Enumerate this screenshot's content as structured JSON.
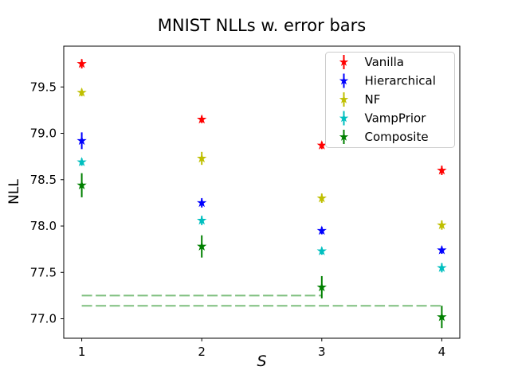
{
  "chart_data": {
    "type": "scatter",
    "subtype": "errorbar",
    "title": "MNIST NLLs w. error bars",
    "xlabel": "S",
    "ylabel": "NLL",
    "x": [
      1,
      2,
      3,
      4
    ],
    "xtick_labels": [
      "1",
      "2",
      "3",
      "4"
    ],
    "ytick_values": [
      77.0,
      77.5,
      78.0,
      78.5,
      79.0,
      79.5
    ],
    "ytick_labels": [
      "77.0",
      "77.5",
      "78.0",
      "78.5",
      "79.0",
      "79.5"
    ],
    "xlim": [
      0.85,
      4.15
    ],
    "ylim": [
      76.79,
      79.94
    ],
    "grid": false,
    "marker": "star",
    "legend_position": "upper right",
    "series": [
      {
        "name": "Vanilla",
        "color": "#ff0000",
        "values": [
          79.75,
          79.15,
          78.87,
          78.6
        ],
        "errors": [
          0.05,
          0.04,
          0.04,
          0.05
        ]
      },
      {
        "name": "Hierarchical",
        "color": "#0000ff",
        "values": [
          78.92,
          78.25,
          77.95,
          77.74
        ],
        "errors": [
          0.09,
          0.05,
          0.04,
          0.04
        ]
      },
      {
        "name": "NF",
        "color": "#bfbf00",
        "values": [
          79.44,
          78.73,
          78.3,
          78.01
        ],
        "errors": [
          0.04,
          0.07,
          0.05,
          0.05
        ]
      },
      {
        "name": "VampPrior",
        "color": "#00bfbf",
        "values": [
          78.69,
          78.06,
          77.73,
          77.55
        ],
        "errors": [
          0.04,
          0.05,
          0.04,
          0.05
        ]
      },
      {
        "name": "Composite",
        "color": "#008000",
        "values": [
          78.44,
          77.78,
          77.34,
          77.02
        ],
        "errors": [
          0.13,
          0.12,
          0.12,
          0.12
        ]
      }
    ],
    "reference_lines": [
      {
        "y": 77.25,
        "x_from": 1,
        "x_to": 3,
        "color": "#7fbf7f",
        "style": "dashed"
      },
      {
        "y": 77.14,
        "x_from": 1,
        "x_to": 4,
        "color": "#7fbf7f",
        "style": "dashed"
      }
    ]
  },
  "colors": {
    "background": "#ffffff",
    "axis": "#000000",
    "legend_border": "#cccccc",
    "legend_background": "#ffffff"
  }
}
